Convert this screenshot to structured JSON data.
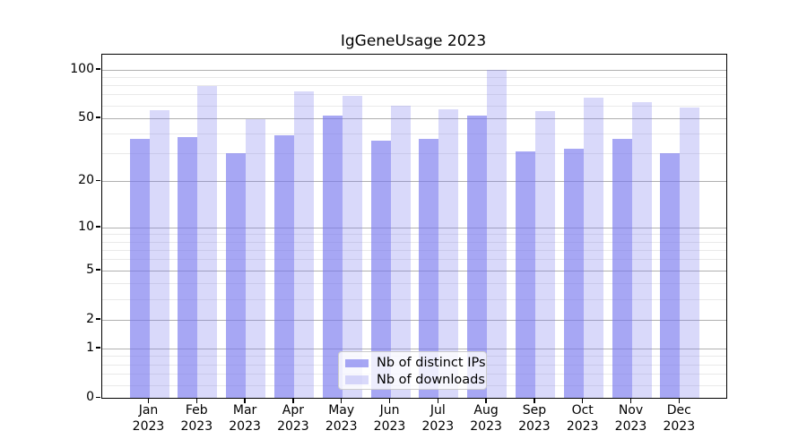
{
  "title": "IgGeneUsage 2023",
  "chart_data": {
    "type": "bar",
    "title": "IgGeneUsage 2023",
    "categories": [
      "Jan 2023",
      "Feb 2023",
      "Mar 2023",
      "Apr 2023",
      "May 2023",
      "Jun 2023",
      "Jul 2023",
      "Aug 2023",
      "Sep 2023",
      "Oct 2023",
      "Nov 2023",
      "Dec 2023"
    ],
    "x_tick_months": [
      "Jan",
      "Feb",
      "Mar",
      "Apr",
      "May",
      "Jun",
      "Jul",
      "Aug",
      "Sep",
      "Oct",
      "Nov",
      "Dec"
    ],
    "x_tick_year": "2023",
    "series": [
      {
        "name": "Nb of distinct IPs",
        "color": "rgba(120,120,238,0.65)",
        "values": [
          37,
          38,
          30,
          39,
          52,
          36,
          37,
          52,
          31,
          32,
          37,
          30
        ]
      },
      {
        "name": "Nb of downloads",
        "color": "rgba(120,120,238,0.28)",
        "values": [
          56,
          79,
          49,
          73,
          69,
          60,
          57,
          100,
          55,
          67,
          63,
          58
        ]
      }
    ],
    "yscale": "log1p",
    "ylim": [
      0,
      123
    ],
    "y_major_ticks": [
      0,
      1,
      2,
      5,
      10,
      20,
      50,
      100
    ],
    "y_minor_ticks": [
      0.2,
      0.4,
      0.6,
      0.8,
      3,
      4,
      6,
      7,
      8,
      9,
      30,
      40,
      60,
      70,
      80,
      90
    ],
    "xlabel": "",
    "ylabel": "",
    "grid": true,
    "legend_position": "lower center",
    "colors": {
      "bar_base": "#7878ee",
      "grid_major": "#b0b0b0",
      "grid_minor": "#e9e9e9",
      "spine": "#000000",
      "legend_border": "#cccccc"
    }
  }
}
